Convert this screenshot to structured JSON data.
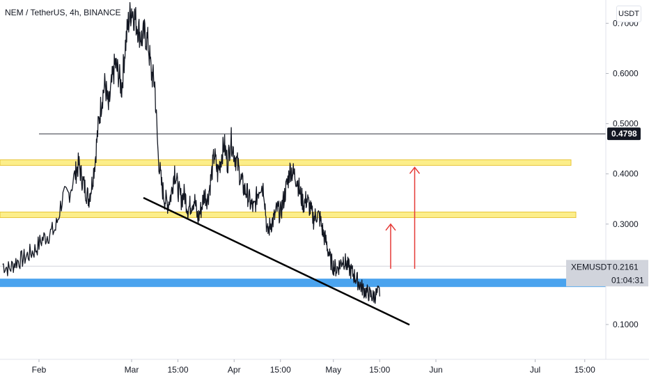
{
  "title": "NEM / TetherUS, 4h, BINANCE",
  "currency_button": "USDT",
  "colors": {
    "candle": "#131722",
    "resistance": "#fcee8a",
    "resistance_border": "#e8c53b",
    "support": "#4aa3ee",
    "trendline": "#000000",
    "arrow": "#e53935",
    "badge_dark": "#131722",
    "badge_grey": "#d1d4dc"
  },
  "chart_data": {
    "type": "line",
    "symbol": "XEMUSDT",
    "y_axis": {
      "ticks": [
        {
          "value": 0.7,
          "label": "0.7000"
        },
        {
          "value": 0.6,
          "label": "0.6000"
        },
        {
          "value": 0.5,
          "label": "0.5000"
        },
        {
          "value": 0.4,
          "label": "0.4000"
        },
        {
          "value": 0.3,
          "label": "0.3000"
        },
        {
          "value": 0.1,
          "label": "0.1000"
        }
      ]
    },
    "x_axis": {
      "ticks": [
        {
          "day": 0,
          "label": "Feb"
        },
        {
          "day": 28,
          "label": "Mar"
        },
        {
          "day": 42,
          "label": "15:00"
        },
        {
          "day": 59,
          "label": "Apr"
        },
        {
          "day": 73,
          "label": "15:00"
        },
        {
          "day": 89,
          "label": "May"
        },
        {
          "day": 103,
          "label": "15:00"
        },
        {
          "day": 120,
          "label": "Jun"
        },
        {
          "day": 150,
          "label": "Jul"
        },
        {
          "day": 165,
          "label": "15:00"
        }
      ]
    },
    "series": [
      {
        "x": [
          -11,
          -9,
          -7,
          -5,
          -3,
          -1,
          1,
          3,
          5,
          7,
          9,
          11,
          12,
          13,
          14,
          15,
          16,
          17,
          18,
          19,
          20,
          21,
          22,
          23,
          24,
          25,
          26,
          27,
          28,
          29,
          30,
          31,
          32,
          33,
          34,
          35,
          36,
          37,
          38,
          39,
          40,
          41,
          42,
          43,
          44,
          45,
          46,
          47,
          48,
          49,
          50,
          51,
          52,
          53,
          54,
          55,
          56,
          57,
          58,
          59,
          60,
          61,
          62,
          63,
          64,
          65,
          66,
          67,
          68,
          69,
          70,
          71,
          72,
          73,
          74,
          75,
          76,
          77,
          78,
          79,
          80,
          81,
          82,
          83,
          84,
          85,
          86,
          87,
          88,
          89,
          90,
          91,
          92,
          93,
          94,
          95,
          96,
          97,
          98,
          99,
          100,
          101,
          102,
          103,
          104,
          105,
          106,
          107
        ],
        "values": [
          0.22,
          0.21,
          0.225,
          0.23,
          0.24,
          0.25,
          0.27,
          0.28,
          0.29,
          0.35,
          0.36,
          0.4,
          0.42,
          0.39,
          0.37,
          0.35,
          0.38,
          0.43,
          0.5,
          0.55,
          0.58,
          0.53,
          0.58,
          0.62,
          0.6,
          0.57,
          0.65,
          0.7,
          0.73,
          0.71,
          0.69,
          0.67,
          0.68,
          0.66,
          0.6,
          0.58,
          0.44,
          0.38,
          0.35,
          0.34,
          0.36,
          0.41,
          0.37,
          0.35,
          0.36,
          0.33,
          0.34,
          0.35,
          0.31,
          0.33,
          0.36,
          0.35,
          0.39,
          0.44,
          0.4,
          0.43,
          0.46,
          0.42,
          0.47,
          0.44,
          0.42,
          0.39,
          0.37,
          0.36,
          0.34,
          0.33,
          0.36,
          0.38,
          0.37,
          0.28,
          0.3,
          0.31,
          0.33,
          0.32,
          0.35,
          0.38,
          0.41,
          0.4,
          0.39,
          0.36,
          0.34,
          0.35,
          0.33,
          0.31,
          0.32,
          0.31,
          0.28,
          0.26,
          0.23,
          0.2161,
          0.21,
          0.22,
          0.23,
          0.22,
          0.21,
          0.2,
          0.19,
          0.18,
          0.17,
          0.165,
          0.16,
          0.155,
          0.16,
          0.165,
          0.17,
          0.175,
          0.18,
          0.185
        ]
      }
    ],
    "horizontal_line": {
      "value": 0.4798,
      "label": "0.4798"
    },
    "resistance_zones": [
      {
        "value": 0.4225
      },
      {
        "value": 0.3185
      }
    ],
    "support_zone": {
      "value": 0.183
    },
    "trendline": {
      "from": {
        "day": 32,
        "value": 0.3525
      },
      "to": {
        "day": 112,
        "value": 0.0995
      }
    },
    "arrows": [
      {
        "day": 108,
        "from": 0.211,
        "to": 0.3
      },
      {
        "day": 114,
        "from": 0.211,
        "to": 0.413
      }
    ],
    "last_price": {
      "symbol": "XEMUSDT",
      "value": "0.2161",
      "countdown": "01:04:31"
    }
  }
}
